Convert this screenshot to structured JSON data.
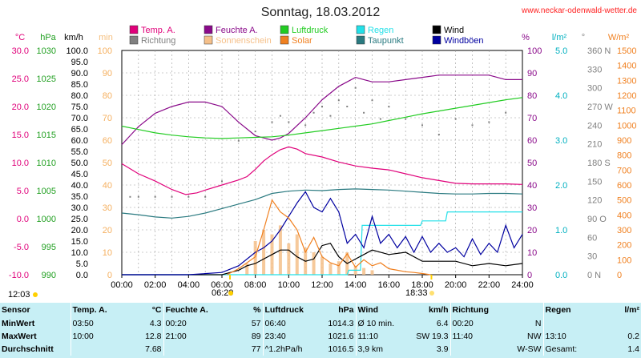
{
  "title": "Sonntag, 18.03.2012",
  "website": "www.neckar-odenwald-wetter.de",
  "colors": {
    "temp": "#e0007a",
    "humidity": "#8a0a8a",
    "pressure": "#22cc22",
    "rain": "#22e0e8",
    "wind": "#000000",
    "direction": "#808080",
    "sunshine": "#f5c08a",
    "solar": "#f08020",
    "dewpoint": "#2a7a80",
    "gusts": "#0000a0"
  },
  "legend": [
    {
      "label": "Temp. A.",
      "color": "#e0007a"
    },
    {
      "label": "Feuchte A.",
      "color": "#8a0a8a"
    },
    {
      "label": "Luftdruck",
      "color": "#22cc22"
    },
    {
      "label": "Regen",
      "color": "#22e0e8"
    },
    {
      "label": "Wind",
      "color": "#000000"
    },
    {
      "label": "Richtung",
      "color": "#808080"
    },
    {
      "label": "Sonnenschein",
      "color": "#f5c08a"
    },
    {
      "label": "Solar",
      "color": "#f08020"
    },
    {
      "label": "Taupunkt",
      "color": "#2a7a80"
    },
    {
      "label": "Windböen",
      "color": "#0000a0"
    }
  ],
  "axis_headers": {
    "temp": "°C",
    "pressure": "hPa",
    "wind": "km/h",
    "sun": "min",
    "humidity": "%",
    "rain": "l/m²",
    "direction": "°",
    "solar": "W/m²"
  },
  "sun_markers": {
    "left_time": "12:03",
    "sunrise": "06:29",
    "sunset": "18:33"
  },
  "chart_data": {
    "type": "line",
    "x": {
      "ticks": [
        "00:00",
        "02:00",
        "04:00",
        "06:00",
        "08:00",
        "10:00",
        "12:00",
        "14:00",
        "16:00",
        "18:00",
        "20:00",
        "22:00",
        "24:00"
      ],
      "range_hours": [
        0,
        24
      ]
    },
    "axes": {
      "temp": {
        "range": [
          -10,
          30
        ],
        "ticks": [
          "30.0",
          "25.0",
          "20.0",
          "15.0",
          "10.0",
          "5.0",
          "0.0",
          "-5.0",
          "-10.0"
        ]
      },
      "pressure": {
        "range": [
          990,
          1030
        ],
        "ticks": [
          "1030",
          "1025",
          "1020",
          "1015",
          "1010",
          "1005",
          "1000",
          "995",
          "990"
        ]
      },
      "wind": {
        "range": [
          0,
          100
        ],
        "ticks": [
          "100.0",
          "95.0",
          "90.0",
          "85.0",
          "80.0",
          "75.0",
          "70.0",
          "65.0",
          "60.0",
          "55.0",
          "50.0",
          "45.0",
          "40.0",
          "35.0",
          "30.0",
          "25.0",
          "20.0",
          "15.0",
          "10.0",
          "5.0",
          "0.0"
        ]
      },
      "sun": {
        "range": [
          0,
          100
        ],
        "ticks": [
          "100",
          "90",
          "80",
          "70",
          "60",
          "50",
          "40",
          "30",
          "20",
          "10",
          "0"
        ]
      },
      "humidity": {
        "range": [
          0,
          100
        ],
        "ticks": [
          "100",
          "90",
          "80",
          "70",
          "60",
          "50",
          "40",
          "30",
          "20",
          "10",
          "0"
        ]
      },
      "rain": {
        "range": [
          0,
          5
        ],
        "ticks": [
          "5.0",
          "4.0",
          "3.0",
          "2.0",
          "1.0",
          "0.0"
        ]
      },
      "direction": {
        "range": [
          0,
          360
        ],
        "ticks": [
          "360 N",
          "330",
          "300",
          "270 W",
          "240",
          "210",
          "180 S",
          "150",
          "120",
          "90 O",
          "60",
          "30",
          "0 N"
        ]
      },
      "solar": {
        "range": [
          0,
          1500
        ],
        "ticks": [
          "1500",
          "1400",
          "1300",
          "1200",
          "1100",
          "1000",
          "900",
          "800",
          "700",
          "600",
          "500",
          "400",
          "300",
          "200",
          "100",
          "0"
        ]
      }
    },
    "series": [
      {
        "name": "Temp. A.",
        "axis": "temp",
        "color": "#e0007a",
        "x": [
          0,
          1,
          2,
          3,
          3.83,
          4.5,
          5,
          6,
          7,
          7.5,
          8,
          8.5,
          9,
          9.5,
          10,
          10.5,
          11,
          12,
          13,
          14,
          15,
          16,
          17,
          18,
          19,
          20,
          21,
          22,
          23,
          24
        ],
        "y": [
          9.8,
          8.0,
          6.7,
          5.2,
          4.3,
          4.6,
          5.1,
          6.0,
          6.9,
          7.5,
          8.8,
          10.3,
          11.4,
          12.3,
          12.8,
          12.4,
          11.6,
          11.0,
          10.1,
          9.4,
          9.0,
          8.7,
          8.0,
          7.3,
          6.8,
          6.3,
          6.2,
          6.2,
          6.2,
          6.1
        ]
      },
      {
        "name": "Feuchte A.",
        "axis": "humidity",
        "color": "#8a0a8a",
        "x": [
          0,
          0.5,
          1,
          2,
          3,
          4,
          5,
          5.5,
          6,
          7,
          8,
          8.5,
          9,
          9.5,
          10,
          11,
          12,
          13,
          13.5,
          14,
          14.5,
          15,
          16,
          17,
          18,
          19,
          20,
          21,
          22,
          23,
          24
        ],
        "y": [
          58,
          62,
          66,
          72,
          75,
          77,
          77,
          76,
          75,
          68,
          62,
          61,
          60,
          61,
          63,
          70,
          78,
          84,
          86,
          88,
          87,
          86,
          86,
          87,
          88,
          89,
          89,
          89,
          89,
          87,
          87
        ]
      },
      {
        "name": "Luftdruck",
        "axis": "pressure",
        "color": "#22cc22",
        "x": [
          0,
          1,
          2,
          3,
          4,
          5,
          6,
          7,
          8,
          9,
          10,
          11,
          12,
          13,
          14,
          15,
          16,
          17,
          18,
          19,
          20,
          21,
          22,
          23,
          24
        ],
        "y": [
          1016.5,
          1015.9,
          1015.3,
          1014.9,
          1014.6,
          1014.4,
          1014.3,
          1014.4,
          1014.5,
          1014.6,
          1014.9,
          1015.3,
          1015.7,
          1016.1,
          1016.5,
          1016.9,
          1017.5,
          1018.1,
          1018.7,
          1019.2,
          1019.7,
          1020.2,
          1020.7,
          1021.2,
          1021.6
        ]
      },
      {
        "name": "Taupunkt",
        "axis": "temp",
        "color": "#2a7a80",
        "x": [
          0,
          1,
          2,
          3,
          4,
          5,
          6,
          7,
          8,
          9,
          10,
          11,
          12,
          13,
          14,
          15,
          16,
          17,
          18,
          19,
          20,
          21,
          22,
          23,
          24
        ],
        "y": [
          1.0,
          0.7,
          0.3,
          0.1,
          0.4,
          1.0,
          1.8,
          2.6,
          3.4,
          4.5,
          4.9,
          5.1,
          5.0,
          5.2,
          5.3,
          5.2,
          5.1,
          4.9,
          4.7,
          4.5,
          4.4,
          4.4,
          4.5,
          4.5,
          4.4
        ]
      },
      {
        "name": "Regen",
        "axis": "rain",
        "color": "#22e0e8",
        "x": [
          0,
          13.5,
          13.6,
          14.3,
          14.4,
          17.9,
          18.0,
          19.4,
          19.5,
          24
        ],
        "y": [
          0,
          0,
          0.1,
          0.1,
          1.1,
          1.1,
          1.2,
          1.2,
          1.4,
          1.4
        ]
      },
      {
        "name": "Wind",
        "axis": "wind",
        "color": "#000000",
        "x": [
          0,
          2,
          4,
          6,
          6.5,
          7,
          7.5,
          8,
          8.5,
          9,
          9.5,
          10,
          10.5,
          11,
          11.5,
          12,
          12.5,
          13,
          13.5,
          14,
          14.5,
          15,
          16,
          17,
          18,
          19,
          20,
          21,
          22,
          23,
          24
        ],
        "y": [
          0,
          0,
          0,
          0,
          1,
          2,
          4,
          5,
          7,
          9,
          11,
          11,
          8,
          6,
          7,
          13,
          14,
          8,
          5,
          7,
          9,
          11,
          9,
          10,
          6,
          6,
          6,
          4,
          5,
          4,
          5
        ]
      },
      {
        "name": "Windböen",
        "axis": "wind",
        "color": "#0000a0",
        "x": [
          0,
          2,
          4,
          6,
          7,
          8,
          8.5,
          9,
          9.5,
          10,
          10.5,
          11,
          11.5,
          12,
          12.5,
          13,
          13.5,
          14,
          14.5,
          15,
          15.5,
          16,
          16.5,
          17,
          17.5,
          18,
          18.5,
          19,
          19.5,
          20,
          20.5,
          21,
          21.5,
          22,
          22.5,
          23,
          23.5,
          24
        ],
        "y": [
          0,
          0,
          0,
          1,
          4,
          10,
          12,
          15,
          20,
          26,
          32,
          37,
          30,
          28,
          34,
          28,
          14,
          18,
          12,
          26,
          14,
          18,
          12,
          17,
          10,
          17,
          10,
          14,
          10,
          12,
          8,
          16,
          9,
          14,
          10,
          22,
          12,
          18
        ]
      },
      {
        "name": "Solar",
        "axis": "solar",
        "color": "#f08020",
        "x": [
          6.3,
          7,
          8,
          8.5,
          9,
          9.5,
          10,
          10.5,
          11,
          11.5,
          12,
          12.5,
          13,
          13.5,
          14,
          14.5,
          15,
          15.5,
          16,
          16.5,
          17,
          17.5,
          18,
          18.5
        ],
        "y": [
          0,
          40,
          120,
          300,
          500,
          420,
          380,
          300,
          150,
          250,
          120,
          80,
          60,
          140,
          50,
          100,
          60,
          80,
          40,
          30,
          20,
          15,
          8,
          0
        ]
      },
      {
        "name": "Richtung",
        "axis": "direction",
        "color": "#808080",
        "style": "dots",
        "x": [
          0.5,
          1,
          2,
          3,
          4,
          5,
          6,
          7,
          8,
          9,
          9.5,
          10,
          11,
          11.5,
          12,
          12.5,
          13,
          13.5,
          14,
          14.5,
          15,
          15.5,
          16,
          17,
          18,
          19,
          20,
          21,
          22,
          23
        ],
        "y": [
          125,
          125,
          125,
          125,
          125,
          125,
          150,
          215,
          230,
          245,
          255,
          245,
          240,
          260,
          270,
          255,
          280,
          270,
          300,
          260,
          280,
          250,
          270,
          250,
          240,
          225,
          250,
          240,
          245,
          260
        ]
      }
    ],
    "sunshine_bars": {
      "axis": "sun",
      "x": [
        7.5,
        8,
        8.5,
        9,
        9.5,
        10,
        10.5,
        11,
        11.5,
        12,
        12.5,
        13,
        13.5,
        14,
        14.5,
        15
      ],
      "y": [
        5,
        15,
        20,
        18,
        22,
        14,
        18,
        12,
        10,
        8,
        5,
        6,
        10,
        4,
        3,
        2
      ]
    }
  },
  "summary": {
    "headers": {
      "sensor": "Sensor",
      "temp": "Temp. A.",
      "temp_unit": "°C",
      "hum": "Feuchte A.",
      "hum_unit": "%",
      "press": "Luftdruck",
      "press_unit": "hPa",
      "wind": "Wind",
      "wind_unit": "km/h",
      "dir": "Richtung",
      "rain": "Regen",
      "rain_unit": "l/m²"
    },
    "rows": [
      {
        "label": "MinWert",
        "temp_time": "03:50",
        "temp": "4.3",
        "hum_time": "00:20",
        "hum": "57",
        "press_time": "06:40",
        "press": "1014.3",
        "wind_a": "Ø 10 min.",
        "wind": "6.4",
        "dir_time": "00:20",
        "dir": "N",
        "rain_time": "",
        "rain": ""
      },
      {
        "label": "MaxWert",
        "temp_time": "10:00",
        "temp": "12.8",
        "hum_time": "21:00",
        "hum": "89",
        "press_time": "23:40",
        "press": "1021.6",
        "wind_a": "11:10",
        "wind_b": "SW 19.3",
        "dir_time": "11:40",
        "dir": "NW",
        "rain_time": "13:10",
        "rain": "0.2"
      },
      {
        "label": "Durchschnitt",
        "temp_time": "",
        "temp": "7.68",
        "hum_time": "",
        "hum": "77",
        "press_time": "^1.2hPa/h",
        "press": "1016.5",
        "wind_a": "3,9 km",
        "wind": "3.9",
        "dir_time": "",
        "dir": "W-SW",
        "rain_time": "Gesamt:",
        "rain": "1.4"
      }
    ]
  }
}
